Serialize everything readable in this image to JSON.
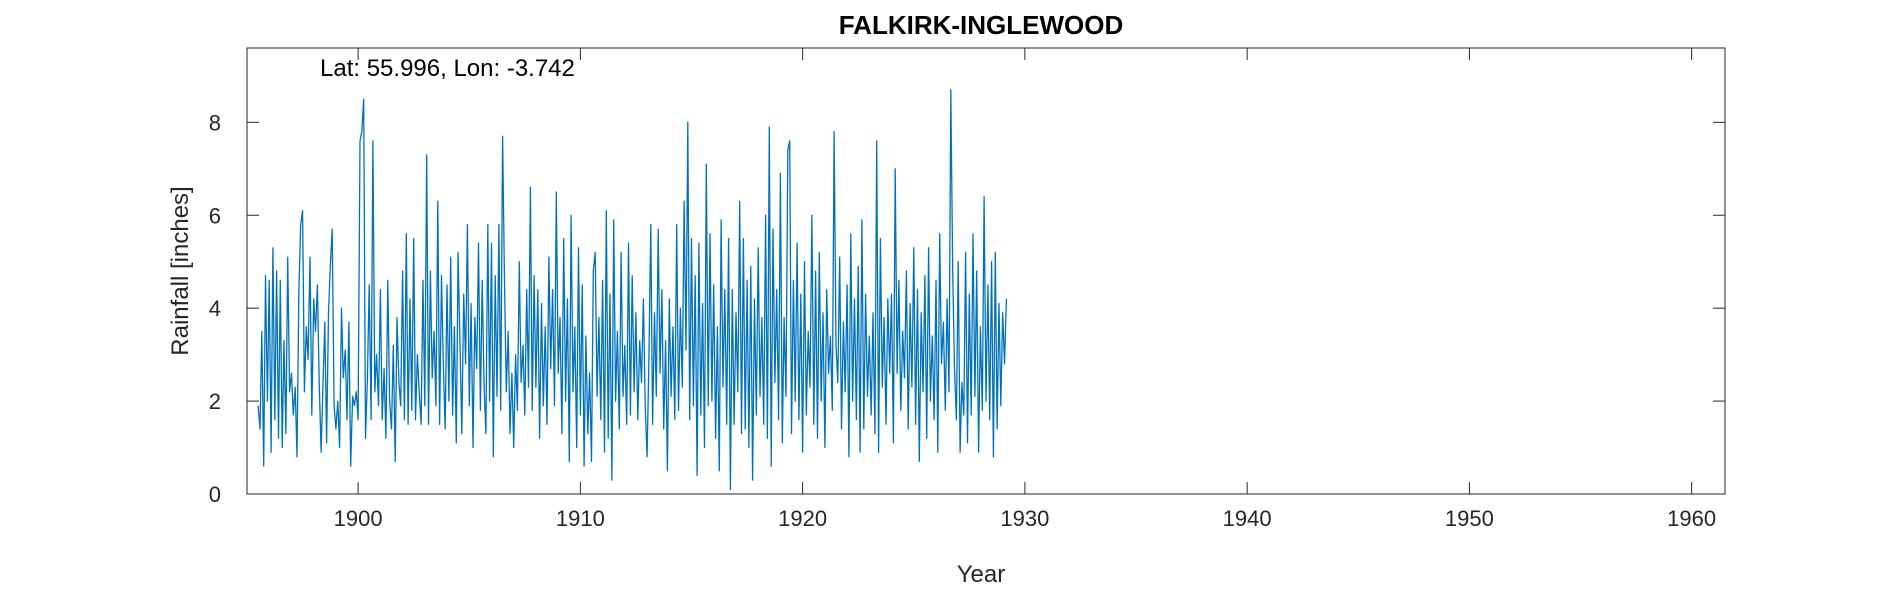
{
  "chart_data": {
    "type": "line",
    "title": "FALKIRK-INGLEWOOD",
    "annotation": "Lat: 55.996, Lon: -3.742",
    "xlabel": "Year",
    "ylabel": "Rainfall [inches]",
    "xlim": [
      1895.0,
      1961.5
    ],
    "ylim": [
      0,
      9.6
    ],
    "xticks": [
      1900,
      1910,
      1920,
      1930,
      1940,
      1950,
      1960
    ],
    "yticks": [
      0,
      2,
      4,
      6,
      8
    ],
    "grid": false,
    "line_color": "#0072BD",
    "series": [
      {
        "x_start": 1895.5,
        "x_step": 0.0833333,
        "values": [
          1.9,
          1.4,
          3.5,
          0.6,
          4.7,
          2.0,
          4.6,
          0.9,
          5.3,
          1.6,
          4.8,
          1.2,
          4.6,
          1.0,
          3.3,
          1.3,
          5.1,
          2.2,
          2.6,
          1.7,
          2.3,
          0.8,
          4.4,
          5.8,
          6.1,
          2.2,
          3.6,
          2.9,
          5.1,
          1.7,
          4.2,
          3.5,
          4.5,
          2.4,
          0.9,
          2.3,
          3.7,
          1.1,
          3.9,
          4.9,
          5.7,
          1.9,
          1.4,
          2.0,
          1.0,
          4.0,
          2.5,
          3.1,
          1.6,
          3.7,
          0.6,
          2.1,
          1.9,
          2.2,
          1.6,
          7.6,
          7.8,
          8.5,
          1.2,
          2.5,
          4.5,
          1.6,
          7.6,
          2.2,
          3.0,
          1.9,
          4.4,
          1.6,
          2.7,
          1.2,
          4.6,
          2.0,
          1.4,
          3.2,
          0.7,
          3.8,
          2.4,
          1.9,
          4.8,
          1.6,
          5.6,
          1.5,
          4.2,
          1.8,
          5.5,
          1.6,
          3.0,
          2.2,
          1.5,
          4.6,
          1.9,
          7.3,
          1.5,
          4.8,
          2.5,
          3.5,
          1.9,
          6.3,
          1.5,
          4.7,
          2.8,
          1.4,
          4.5,
          2.0,
          5.1,
          1.7,
          3.6,
          1.1,
          5.2,
          3.2,
          1.3,
          4.3,
          2.8,
          5.8,
          1.9,
          4.1,
          1.0,
          3.8,
          2.7,
          5.4,
          1.8,
          4.6,
          2.3,
          1.3,
          5.8,
          2.0,
          5.4,
          0.8,
          4.7,
          2.1,
          5.8,
          1.8,
          7.7,
          4.7,
          2.2,
          3.5,
          1.3,
          2.6,
          1.0,
          3.0,
          1.8,
          5.0,
          2.4,
          3.2,
          1.7,
          4.4,
          2.3,
          6.6,
          1.8,
          4.7,
          2.3,
          4.4,
          1.2,
          4.1,
          1.9,
          3.6,
          1.5,
          5.1,
          2.7,
          4.4,
          1.9,
          6.5,
          2.6,
          3.8,
          1.3,
          5.5,
          2.0,
          4.2,
          0.7,
          6.0,
          2.2,
          3.6,
          1.0,
          5.3,
          1.7,
          4.5,
          0.6,
          3.4,
          1.3,
          2.6,
          0.7,
          4.8,
          5.2,
          2.1,
          3.8,
          1.6,
          4.6,
          0.9,
          6.1,
          1.2,
          4.3,
          0.3,
          5.9,
          2.0,
          3.5,
          1.4,
          5.2,
          2.1,
          3.2,
          1.5,
          5.4,
          1.7,
          4.7,
          2.2,
          3.9,
          1.6,
          3.3,
          2.4,
          4.2,
          1.9,
          0.8,
          2.9,
          5.8,
          1.5,
          3.9,
          2.1,
          5.7,
          2.6,
          4.4,
          1.4,
          3.3,
          0.5,
          4.2,
          2.1,
          3.6,
          1.6,
          5.8,
          1.8,
          4.0,
          2.3,
          6.3,
          3.1,
          8.0,
          1.6,
          5.5,
          1.9,
          4.7,
          0.4,
          5.4,
          1.7,
          4.1,
          1.0,
          7.1,
          1.9,
          5.6,
          2.0,
          4.5,
          1.2,
          3.6,
          0.5,
          5.9,
          2.3,
          4.4,
          1.5,
          5.5,
          0.1,
          4.4,
          1.5,
          3.9,
          2.2,
          6.3,
          1.3,
          5.5,
          1.4,
          4.6,
          1.0,
          4.9,
          0.3,
          4.2,
          1.7,
          5.3,
          2.1,
          3.8,
          1.5,
          6.0,
          1.2,
          7.9,
          0.6,
          5.7,
          2.4,
          4.4,
          1.6,
          6.9,
          1.1,
          3.8,
          2.1,
          7.4,
          7.6,
          1.3,
          4.6,
          2.0,
          5.4,
          1.6,
          4.3,
          0.9,
          5.0,
          1.7,
          3.5,
          2.3,
          6.0,
          1.5,
          4.8,
          1.2,
          5.2,
          2.0,
          3.9,
          1.0,
          4.4,
          2.6,
          3.4,
          1.8,
          7.8,
          3.2,
          2.4,
          5.1,
          1.4,
          3.7,
          2.2,
          4.5,
          0.8,
          5.6,
          2.0,
          4.2,
          1.6,
          4.9,
          0.9,
          5.9,
          1.4,
          4.3,
          2.1,
          3.4,
          1.7,
          3.9,
          1.3,
          7.6,
          0.9,
          5.5,
          2.3,
          3.8,
          1.5,
          4.2,
          2.6,
          4.3,
          1.1,
          7.0,
          2.6,
          4.6,
          1.8,
          3.5,
          2.5,
          4.8,
          1.4,
          4.1,
          2.3,
          5.3,
          1.5,
          4.4,
          0.7,
          3.9,
          2.2,
          4.7,
          1.2,
          5.3,
          2.0,
          3.4,
          1.6,
          4.6,
          0.9,
          5.6,
          2.8,
          3.7,
          1.8,
          4.2,
          2.2,
          8.7,
          4.8,
          2.7,
          1.6,
          5.0,
          0.9,
          2.4,
          1.7,
          5.2,
          1.1,
          4.3,
          1.7,
          5.6,
          2.1,
          4.8,
          0.9,
          3.6,
          1.8,
          6.4,
          2.0,
          4.5,
          1.6,
          5.0,
          0.8,
          5.2,
          1.4,
          4.1,
          1.9,
          3.9,
          2.8,
          4.2
        ]
      }
    ]
  }
}
